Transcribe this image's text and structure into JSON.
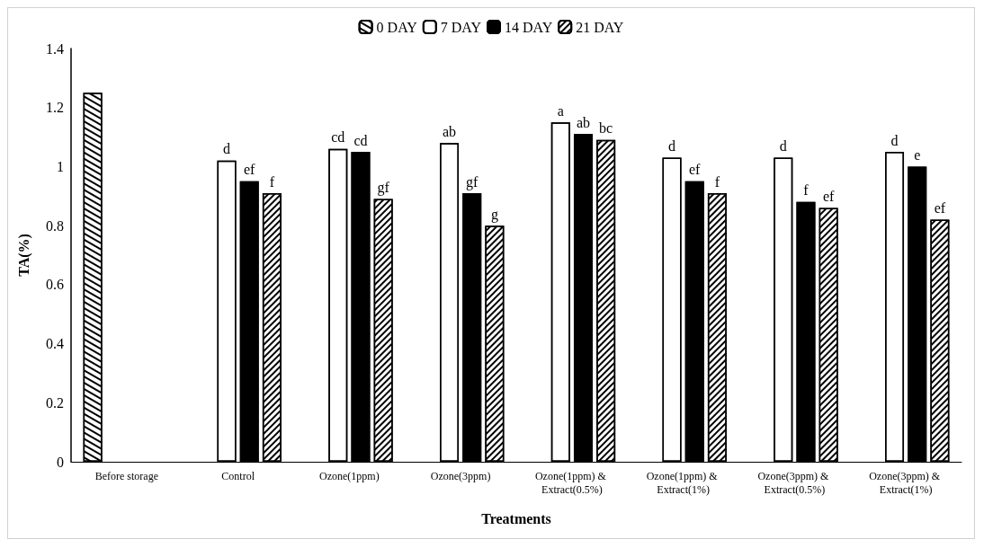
{
  "chart_data": {
    "type": "bar",
    "xlabel": "Treatments",
    "ylabel": "TA(%)",
    "categories": [
      "Before storage",
      "Control",
      "Ozone(1ppm)",
      "Ozone(3ppm)",
      "Ozone(1ppm) & Extract(0.5%)",
      "Ozone(1ppm) & Extract(1%)",
      "Ozone(3ppm) & Extract(0.5%)",
      "Ozone(3ppm) & Extract(1%)"
    ],
    "series": [
      {
        "name": "0 DAY",
        "color": "#ffffff",
        "values": [
          1.25,
          null,
          null,
          null,
          null,
          null,
          null,
          null
        ]
      },
      {
        "name": "7 DAY",
        "color": "#ffffff",
        "values": [
          null,
          1.02,
          1.06,
          1.08,
          1.15,
          1.03,
          1.03,
          1.05
        ],
        "value_labels": [
          null,
          "d",
          "cd",
          "ab",
          "a",
          "d",
          "d",
          "d"
        ]
      },
      {
        "name": "14 DAY",
        "color": "#000000",
        "values": [
          null,
          0.95,
          1.05,
          0.91,
          1.11,
          0.95,
          0.88,
          1.0
        ],
        "value_labels": [
          null,
          "ef",
          "cd",
          "gf",
          "ab",
          "ef",
          "f",
          "e"
        ]
      },
      {
        "name": "21 DAY",
        "color": "#ffffff",
        "values": [
          null,
          0.91,
          0.89,
          0.8,
          1.09,
          0.91,
          0.86,
          0.82
        ],
        "value_labels": [
          null,
          "f",
          "gf",
          "g",
          "bc",
          "f",
          "ef",
          "ef"
        ]
      }
    ],
    "ylim": [
      0,
      1.4
    ],
    "yticks": [
      0,
      0.2,
      0.4,
      0.6,
      0.8,
      1,
      1.2,
      1.4
    ],
    "grid": false,
    "legend": "top"
  }
}
